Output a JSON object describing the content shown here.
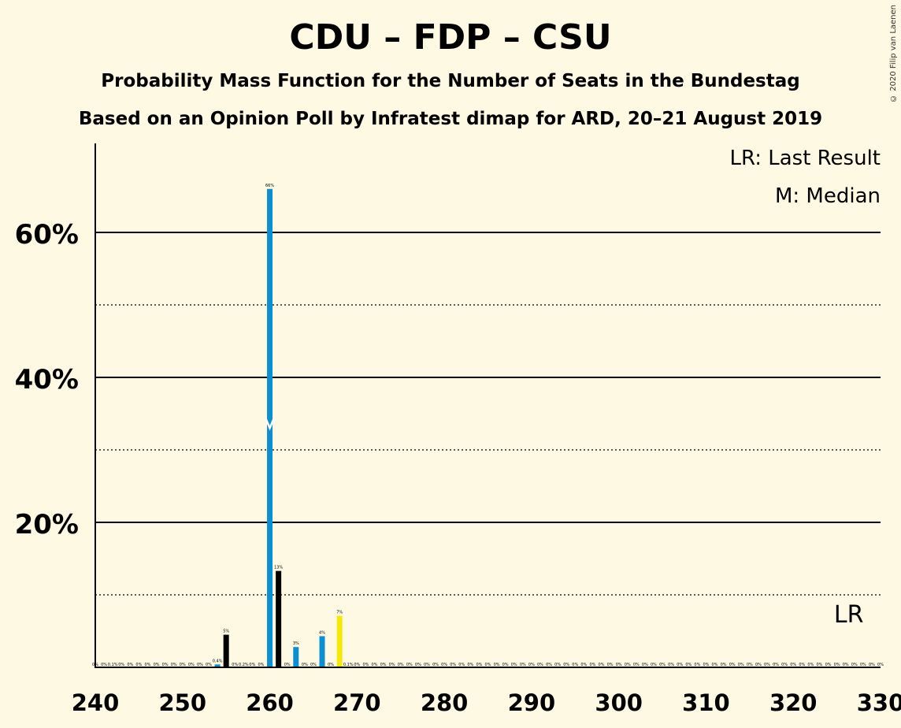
{
  "header": {
    "title": "CDU – FDP – CSU",
    "subtitle": "Probability Mass Function for the Number of Seats in the Bundestag",
    "subtitle2": "Based on an Opinion Poll by Infratest dimap for ARD, 20–21 August 2019",
    "copyright": "© 2020 Filip van Laenen"
  },
  "legend": {
    "lr": "LR: Last Result",
    "m": "M: Median"
  },
  "colors": {
    "background": "#fef9e2",
    "blue": "#0b8fd3",
    "black": "#000000",
    "yellow": "#f5e90b"
  },
  "chart_data": {
    "type": "bar",
    "title": "CDU – FDP – CSU",
    "xlabel": "",
    "ylabel": "",
    "xlim": [
      240,
      330
    ],
    "ylim": [
      0,
      0.72
    ],
    "x_ticks": [
      240,
      250,
      260,
      270,
      280,
      290,
      300,
      310,
      320,
      330
    ],
    "y_ticks_major": [
      0.2,
      0.4,
      0.6
    ],
    "y_ticks_major_labels": [
      "20%",
      "40%",
      "60%"
    ],
    "y_ticks_minor": [
      0.1,
      0.3,
      0.5
    ],
    "median_seat": 260,
    "median_value": 0.33,
    "last_result_label": "LR",
    "last_result_seat": 326,
    "bars": [
      {
        "x": 254,
        "value": 0.004,
        "label": "0.4%",
        "color": "blue"
      },
      {
        "x": 255,
        "value": 0.045,
        "label": "5%",
        "color": "black"
      },
      {
        "x": 260,
        "value": 0.66,
        "label": "66%",
        "color": "blue"
      },
      {
        "x": 261,
        "value": 0.133,
        "label": "13%",
        "color": "black"
      },
      {
        "x": 263,
        "value": 0.028,
        "label": "3%",
        "color": "blue"
      },
      {
        "x": 266,
        "value": 0.043,
        "label": "4%",
        "color": "blue"
      },
      {
        "x": 268,
        "value": 0.071,
        "label": "7%",
        "color": "yellow"
      }
    ],
    "zero_labels": [
      {
        "x": 240,
        "label": "0%"
      },
      {
        "x": 241,
        "label": "0%"
      },
      {
        "x": 242,
        "label": "0.1%"
      },
      {
        "x": 243,
        "label": "0%"
      },
      {
        "x": 244,
        "label": "0%"
      },
      {
        "x": 245,
        "label": "0%"
      },
      {
        "x": 246,
        "label": "0%"
      },
      {
        "x": 247,
        "label": "0%"
      },
      {
        "x": 248,
        "label": "0%"
      },
      {
        "x": 249,
        "label": "0%"
      },
      {
        "x": 250,
        "label": "0%"
      },
      {
        "x": 251,
        "label": "0%"
      },
      {
        "x": 252,
        "label": "0%"
      },
      {
        "x": 253,
        "label": "0%"
      },
      {
        "x": 256,
        "label": "0%"
      },
      {
        "x": 257,
        "label": "0.2%"
      },
      {
        "x": 258,
        "label": "0%"
      },
      {
        "x": 259,
        "label": "0%"
      },
      {
        "x": 262,
        "label": "0%"
      },
      {
        "x": 264,
        "label": "0%"
      },
      {
        "x": 265,
        "label": "0%"
      },
      {
        "x": 267,
        "label": "0%"
      },
      {
        "x": 269,
        "label": "0.1%"
      },
      {
        "x": 270,
        "label": "0%"
      },
      {
        "x": 271,
        "label": "0%"
      },
      {
        "x": 272,
        "label": "0%"
      },
      {
        "x": 273,
        "label": "0%"
      },
      {
        "x": 274,
        "label": "0%"
      },
      {
        "x": 275,
        "label": "0%"
      },
      {
        "x": 276,
        "label": "0%"
      },
      {
        "x": 277,
        "label": "0%"
      },
      {
        "x": 278,
        "label": "0%"
      },
      {
        "x": 279,
        "label": "0%"
      },
      {
        "x": 280,
        "label": "0%"
      },
      {
        "x": 281,
        "label": "0%"
      },
      {
        "x": 282,
        "label": "0%"
      },
      {
        "x": 283,
        "label": "0%"
      },
      {
        "x": 284,
        "label": "0%"
      },
      {
        "x": 285,
        "label": "0%"
      },
      {
        "x": 286,
        "label": "0%"
      },
      {
        "x": 287,
        "label": "0%"
      },
      {
        "x": 288,
        "label": "0%"
      },
      {
        "x": 289,
        "label": "0%"
      },
      {
        "x": 290,
        "label": "0%"
      },
      {
        "x": 291,
        "label": "0%"
      },
      {
        "x": 292,
        "label": "0%"
      },
      {
        "x": 293,
        "label": "0%"
      },
      {
        "x": 294,
        "label": "0%"
      },
      {
        "x": 295,
        "label": "0%"
      },
      {
        "x": 296,
        "label": "0%"
      },
      {
        "x": 297,
        "label": "0%"
      },
      {
        "x": 298,
        "label": "0%"
      },
      {
        "x": 299,
        "label": "0%"
      },
      {
        "x": 300,
        "label": "0%"
      },
      {
        "x": 301,
        "label": "0%"
      },
      {
        "x": 302,
        "label": "0%"
      },
      {
        "x": 303,
        "label": "0%"
      },
      {
        "x": 304,
        "label": "0%"
      },
      {
        "x": 305,
        "label": "0%"
      },
      {
        "x": 306,
        "label": "0%"
      },
      {
        "x": 307,
        "label": "0%"
      },
      {
        "x": 308,
        "label": "0%"
      },
      {
        "x": 309,
        "label": "0%"
      },
      {
        "x": 310,
        "label": "0%"
      },
      {
        "x": 311,
        "label": "0%"
      },
      {
        "x": 312,
        "label": "0%"
      },
      {
        "x": 313,
        "label": "0%"
      },
      {
        "x": 314,
        "label": "0%"
      },
      {
        "x": 315,
        "label": "0%"
      },
      {
        "x": 316,
        "label": "0%"
      },
      {
        "x": 317,
        "label": "0%"
      },
      {
        "x": 318,
        "label": "0%"
      },
      {
        "x": 319,
        "label": "0%"
      },
      {
        "x": 320,
        "label": "0%"
      },
      {
        "x": 321,
        "label": "0%"
      },
      {
        "x": 322,
        "label": "0%"
      },
      {
        "x": 323,
        "label": "0%"
      },
      {
        "x": 324,
        "label": "0%"
      },
      {
        "x": 325,
        "label": "0%"
      },
      {
        "x": 326,
        "label": "0%"
      },
      {
        "x": 327,
        "label": "0%"
      },
      {
        "x": 328,
        "label": "0%"
      },
      {
        "x": 329,
        "label": "0%"
      },
      {
        "x": 330,
        "label": "0%"
      }
    ]
  }
}
